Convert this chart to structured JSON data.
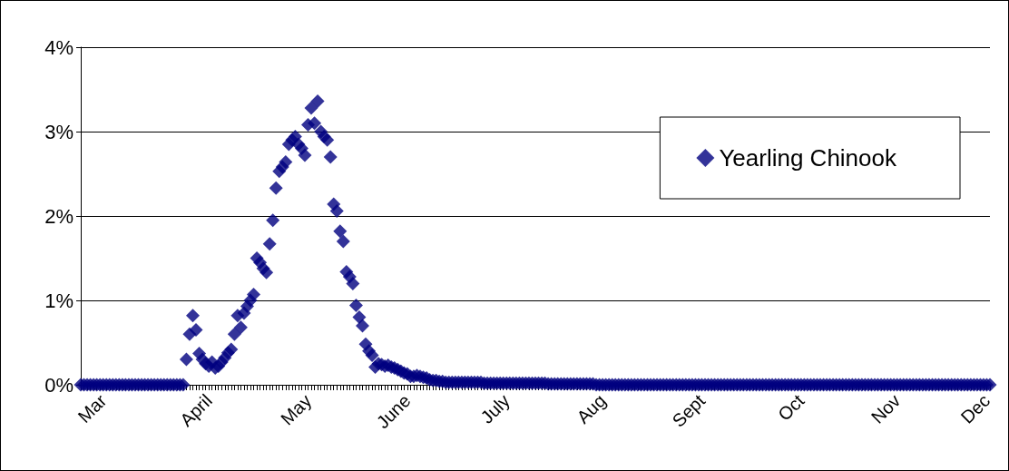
{
  "chart_data": {
    "type": "scatter",
    "categories": [
      null,
      null,
      null,
      null,
      null,
      null,
      null,
      "Mar",
      null,
      null,
      null,
      null,
      null,
      null,
      null,
      null,
      null,
      null,
      null,
      null,
      null,
      null,
      null,
      null,
      null,
      null,
      null,
      null,
      null,
      null,
      null,
      null,
      null,
      null,
      null,
      null,
      null,
      null,
      null,
      null,
      "April",
      null,
      null,
      null,
      null,
      null,
      null,
      null,
      null,
      null,
      null,
      null,
      null,
      null,
      null,
      null,
      null,
      null,
      null,
      null,
      null,
      null,
      null,
      null,
      null,
      null,
      null,
      null,
      null,
      null,
      null,
      "May",
      null,
      null,
      null,
      null,
      null,
      null,
      null,
      null,
      null,
      null,
      null,
      null,
      null,
      null,
      null,
      null,
      null,
      null,
      null,
      null,
      null,
      null,
      null,
      null,
      null,
      null,
      null,
      null,
      null,
      null,
      "June",
      null,
      null,
      null,
      null,
      null,
      null,
      null,
      null,
      null,
      null,
      null,
      null,
      null,
      null,
      null,
      null,
      null,
      null,
      null,
      null,
      null,
      null,
      null,
      null,
      null,
      null,
      null,
      null,
      null,
      null,
      "July",
      null,
      null,
      null,
      null,
      null,
      null,
      null,
      null,
      null,
      null,
      null,
      null,
      null,
      null,
      null,
      null,
      null,
      null,
      null,
      null,
      null,
      null,
      null,
      null,
      null,
      null,
      null,
      null,
      null,
      "Aug",
      null,
      null,
      null,
      null,
      null,
      null,
      null,
      null,
      null,
      null,
      null,
      null,
      null,
      null,
      null,
      null,
      null,
      null,
      null,
      null,
      null,
      null,
      null,
      null,
      null,
      null,
      null,
      null,
      null,
      null,
      "Sept",
      null,
      null,
      null,
      null,
      null,
      null,
      null,
      null,
      null,
      null,
      null,
      null,
      null,
      null,
      null,
      null,
      null,
      null,
      null,
      null,
      null,
      null,
      null,
      null,
      null,
      null,
      null,
      null,
      null,
      null,
      "Oct",
      null,
      null,
      null,
      null,
      null,
      null,
      null,
      null,
      null,
      null,
      null,
      null,
      null,
      null,
      null,
      null,
      null,
      null,
      null,
      null,
      null,
      null,
      null,
      null,
      null,
      null,
      null,
      null,
      null,
      "Nov",
      null,
      null,
      null,
      null,
      null,
      null,
      null,
      null,
      null,
      null,
      null,
      null,
      null,
      null,
      null,
      null,
      null,
      null,
      null,
      null,
      null,
      null,
      null,
      null,
      null,
      null,
      null,
      "Dec",
      null
    ],
    "series": [
      {
        "name": "Yearling Chinook",
        "color": "#000080",
        "values": [
          0,
          0,
          0,
          0,
          0,
          0,
          0,
          0,
          0,
          0,
          0,
          0,
          0,
          0,
          0,
          0,
          0,
          0,
          0,
          0,
          0,
          0,
          0,
          0,
          0,
          0,
          0,
          0,
          0,
          0,
          0,
          0,
          0,
          0.3,
          0.6,
          0.82,
          0.65,
          0.37,
          0.3,
          0.25,
          0.22,
          0.27,
          0.2,
          0.22,
          0.27,
          0.32,
          0.38,
          0.42,
          0.6,
          0.82,
          0.68,
          0.85,
          0.93,
          1.0,
          1.07,
          1.5,
          1.45,
          1.38,
          1.33,
          1.67,
          1.95,
          2.33,
          2.53,
          2.58,
          2.64,
          2.85,
          2.9,
          2.94,
          2.85,
          2.8,
          2.72,
          3.08,
          3.28,
          3.1,
          3.36,
          3.0,
          2.94,
          2.9,
          2.7,
          2.14,
          2.06,
          1.82,
          1.7,
          1.34,
          1.28,
          1.2,
          0.94,
          0.8,
          0.7,
          0.48,
          0.4,
          0.35,
          0.21,
          0.25,
          0.24,
          0.22,
          0.23,
          0.21,
          0.2,
          0.18,
          0.16,
          0.14,
          0.13,
          0.1,
          0.1,
          0.11,
          0.1,
          0.09,
          0.08,
          0.06,
          0.05,
          0.05,
          0.04,
          0.04,
          0.03,
          0.03,
          0.03,
          0.03,
          0.03,
          0.03,
          0.03,
          0.03,
          0.03,
          0.03,
          0.03,
          0.03,
          0.02,
          0.02,
          0.02,
          0.02,
          0.02,
          0.02,
          0.02,
          0.02,
          0.02,
          0.02,
          0.02,
          0.02,
          0.02,
          0.02,
          0.02,
          0.02,
          0.02,
          0.02,
          0.02,
          0.02,
          0.01,
          0.01,
          0.01,
          0.01,
          0.01,
          0.01,
          0.01,
          0.01,
          0.01,
          0.01,
          0.01,
          0.01,
          0.01,
          0.01,
          0.01,
          0,
          0,
          0,
          0,
          0,
          0,
          0,
          0,
          0,
          0,
          0,
          0,
          0,
          0,
          0,
          0,
          0,
          0,
          0,
          0,
          0,
          0,
          0,
          0,
          0,
          0,
          0,
          0,
          0,
          0,
          0,
          0,
          0,
          0,
          0,
          0,
          0,
          0,
          0,
          0,
          0,
          0,
          0,
          0,
          0,
          0,
          0,
          0,
          0,
          0,
          0,
          0,
          0,
          0,
          0,
          0,
          0,
          0,
          0,
          0,
          0,
          0,
          0,
          0,
          0,
          0,
          0,
          0,
          0,
          0,
          0,
          0,
          0,
          0,
          0,
          0,
          0,
          0,
          0,
          0,
          0,
          0,
          0,
          0,
          0,
          0,
          0,
          0,
          0,
          0,
          0,
          0,
          0,
          0,
          0,
          0,
          0,
          0,
          0,
          0,
          0,
          0,
          0,
          0,
          0,
          0,
          0,
          0,
          0,
          0,
          0,
          0,
          0,
          0,
          0,
          0,
          0,
          0,
          0,
          0,
          0,
          0,
          0,
          0
        ]
      }
    ],
    "ylim": [
      0,
      4
    ],
    "yticks": [
      {
        "value": 0,
        "label": "0%"
      },
      {
        "value": 1,
        "label": "1%"
      },
      {
        "value": 2,
        "label": "2%"
      },
      {
        "value": 3,
        "label": "3%"
      },
      {
        "value": 4,
        "label": "4%"
      }
    ],
    "grid": "y",
    "legend": "top right",
    "marker": "diamond"
  }
}
